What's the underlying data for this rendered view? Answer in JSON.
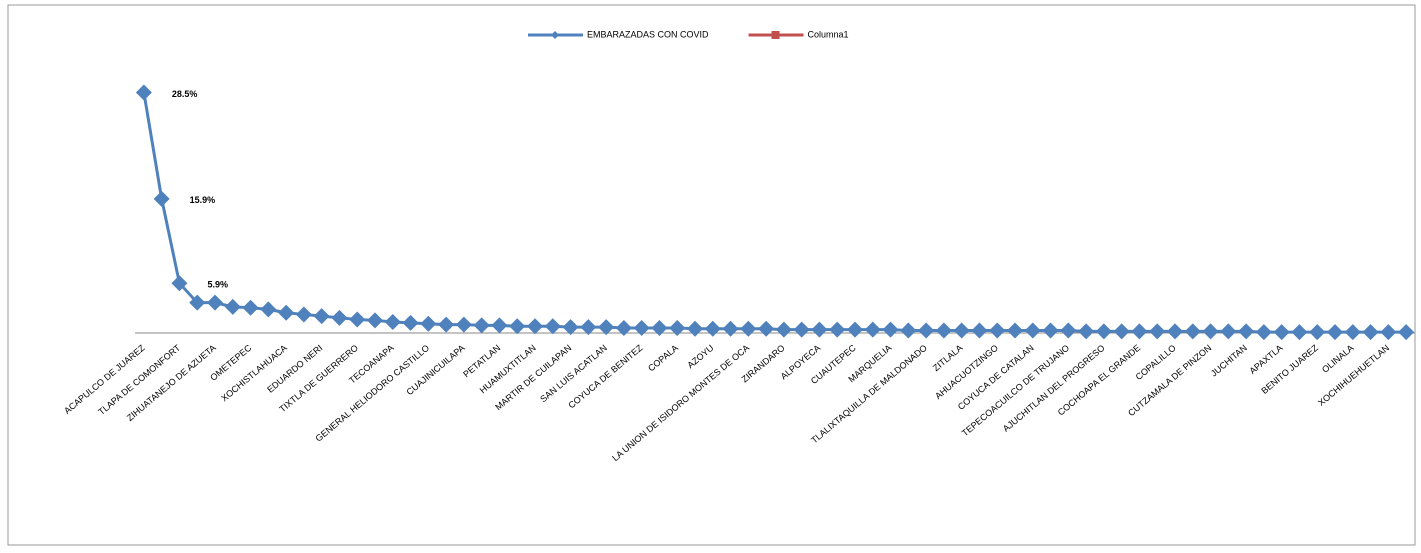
{
  "chart_data": {
    "type": "line",
    "categories": [
      "ACAPULCO DE JUAREZ",
      null,
      "TLAPA DE COMONFORT",
      null,
      "ZIHUATANEJO DE AZUETA",
      null,
      "OMETEPEC",
      null,
      "XOCHISTLAHUACA",
      null,
      "EDUARDO NERI",
      null,
      "TIXTLA DE GUERRERO",
      null,
      "TECOANAPA",
      null,
      "GENERAL HELIODORO CASTILLO",
      null,
      "CUAJINICUILAPA",
      null,
      "PETATLAN",
      null,
      "HUAMUXTITLAN",
      null,
      "MARTIR DE CUILAPAN",
      null,
      "SAN LUIS ACATLAN",
      null,
      "COYUCA DE BENITEZ",
      null,
      "COPALA",
      null,
      "AZOYU",
      null,
      "LA UNION DE ISIDORO MONTES DE OCA",
      null,
      "ZIRANDARO",
      null,
      "ALPOYECA",
      null,
      "CUAUTEPEC",
      null,
      "MARQUELIA",
      null,
      "TLALIXTAQUILLA DE MALDONADO",
      null,
      "ZITLALA",
      null,
      "AHUACUOTZINGO",
      null,
      "COYUCA DE CATALAN",
      null,
      "TEPECOACUILCO DE TRUJANO",
      null,
      "AJUCHITLAN DEL PROGRESO",
      null,
      "COCHOAPA EL GRANDE",
      null,
      "COPALILLO",
      null,
      "CUTZAMALA DE PINZON",
      null,
      "JUCHITAN",
      null,
      "APAXTLA",
      null,
      "BENITO JUAREZ",
      null,
      "OLINALA",
      null,
      "XOCHIHUEHUETLAN",
      null
    ],
    "series": [
      {
        "name": "EMBARAZADAS CON COVID",
        "color": "#4f81bd",
        "values": [
          28.5,
          15.9,
          5.9,
          3.6,
          3.6,
          3.1,
          3.0,
          2.8,
          2.4,
          2.2,
          2.0,
          1.8,
          1.6,
          1.5,
          1.3,
          1.2,
          1.1,
          1.0,
          1.0,
          0.9,
          0.9,
          0.8,
          0.8,
          0.8,
          0.7,
          0.7,
          0.7,
          0.6,
          0.6,
          0.6,
          0.6,
          0.5,
          0.5,
          0.5,
          0.5,
          0.5,
          0.4,
          0.4,
          0.4,
          0.4,
          0.4,
          0.4,
          0.4,
          0.3,
          0.3,
          0.3,
          0.3,
          0.3,
          0.3,
          0.3,
          0.3,
          0.3,
          0.3,
          0.2,
          0.2,
          0.2,
          0.2,
          0.2,
          0.2,
          0.2,
          0.2,
          0.2,
          0.2,
          0.1,
          0.1,
          0.1,
          0.1,
          0.1,
          0.1,
          0.1,
          0.1,
          0.1
        ],
        "value_labels": [
          "28.5%",
          "15.9%",
          "5.9%",
          null,
          null,
          null,
          null,
          null,
          null,
          null,
          null,
          null,
          null,
          null,
          null,
          null,
          null,
          null,
          null,
          null,
          null,
          null,
          null,
          null,
          null,
          null,
          null,
          null,
          null,
          null,
          null,
          null,
          null,
          null,
          null,
          null,
          null,
          null,
          null,
          null,
          null,
          null,
          null,
          null,
          null,
          null,
          null,
          null,
          null,
          null,
          null,
          null,
          null,
          null,
          null,
          null,
          null,
          null,
          null,
          null,
          null,
          null,
          null,
          null,
          null,
          null,
          null,
          null,
          null,
          null,
          null,
          null
        ]
      },
      {
        "name": "Columna1",
        "color": "#c0504d",
        "values": [
          null,
          null,
          null,
          null,
          null,
          null,
          null,
          null,
          null,
          null,
          null,
          null,
          null,
          null,
          null,
          null,
          null,
          null,
          null,
          null,
          null,
          null,
          null,
          null,
          null,
          null,
          null,
          null,
          null,
          null,
          null,
          null,
          null,
          null,
          null,
          null,
          null,
          null,
          null,
          null,
          null,
          null,
          null,
          null,
          null,
          null,
          null,
          null,
          null,
          null,
          null,
          null,
          null,
          null,
          null,
          null,
          null,
          null,
          null,
          null,
          null,
          null,
          null,
          null,
          null,
          null,
          null,
          null,
          null,
          null,
          null,
          null
        ]
      }
    ],
    "ylim": [
      0,
      32
    ],
    "legend": "top"
  }
}
